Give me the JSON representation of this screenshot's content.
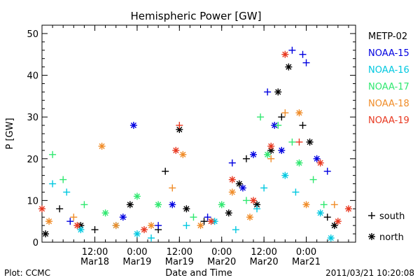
{
  "chart_data": {
    "type": "scatter",
    "title": "Hemispheric Power [GW]",
    "ylabel": "P [GW]",
    "xlabel": "Date and Time",
    "xlim": [
      "2011-03-17T21:00",
      "2011-03-21T14:00"
    ],
    "ylim": [
      0,
      52
    ],
    "yticks": [
      0,
      10,
      20,
      30,
      40,
      50
    ],
    "yminor_step": 2,
    "xticks": [
      {
        "t": "2011-03-18T12:00",
        "time": "12:00",
        "date": "Mar18"
      },
      {
        "t": "2011-03-19T00:00",
        "time": "0:00",
        "date": "Mar19"
      },
      {
        "t": "2011-03-19T12:00",
        "time": "12:00",
        "date": "Mar19"
      },
      {
        "t": "2011-03-20T00:00",
        "time": "0:00",
        "date": "Mar20"
      },
      {
        "t": "2011-03-20T12:00",
        "time": "12:00",
        "date": "Mar20"
      },
      {
        "t": "2011-03-21T00:00",
        "time": "0:00",
        "date": "Mar21"
      }
    ],
    "xminor_hours": 3,
    "grid": false,
    "legend_position": "right",
    "series": [
      {
        "name": "METP-02",
        "color": "#000000",
        "points": [
          {
            "t": "2011-03-17T22:00",
            "v": 2,
            "m": "n"
          },
          {
            "t": "2011-03-18T02:00",
            "v": 8,
            "m": "s"
          },
          {
            "t": "2011-03-18T08:00",
            "v": 4,
            "m": "n"
          },
          {
            "t": "2011-03-18T12:00",
            "v": 3,
            "m": "s"
          },
          {
            "t": "2011-03-18T22:00",
            "v": 9,
            "m": "n"
          },
          {
            "t": "2011-03-19T06:00",
            "v": 3,
            "m": "s"
          },
          {
            "t": "2011-03-19T08:00",
            "v": 17,
            "m": "s"
          },
          {
            "t": "2011-03-19T12:00",
            "v": 27,
            "m": "n"
          },
          {
            "t": "2011-03-19T14:00",
            "v": 8,
            "m": "n"
          },
          {
            "t": "2011-03-19T19:00",
            "v": 5,
            "m": "s"
          },
          {
            "t": "2011-03-20T02:00",
            "v": 7,
            "m": "n"
          },
          {
            "t": "2011-03-20T05:00",
            "v": 14,
            "m": "n"
          },
          {
            "t": "2011-03-20T07:00",
            "v": 20,
            "m": "s"
          },
          {
            "t": "2011-03-20T10:00",
            "v": 9,
            "m": "n"
          },
          {
            "t": "2011-03-20T14:00",
            "v": 22,
            "m": "n"
          },
          {
            "t": "2011-03-20T16:00",
            "v": 36,
            "m": "n"
          },
          {
            "t": "2011-03-20T17:00",
            "v": 30,
            "m": "s"
          },
          {
            "t": "2011-03-20T19:00",
            "v": 42,
            "m": "n"
          },
          {
            "t": "2011-03-20T23:00",
            "v": 28,
            "m": "s"
          },
          {
            "t": "2011-03-21T01:00",
            "v": 24,
            "m": "n"
          },
          {
            "t": "2011-03-21T06:00",
            "v": 6,
            "m": "s"
          },
          {
            "t": "2011-03-21T08:00",
            "v": 4,
            "m": "n"
          }
        ]
      },
      {
        "name": "NOAA-15",
        "color": "#0000e0",
        "points": [
          {
            "t": "2011-03-18T05:00",
            "v": 5,
            "m": "s"
          },
          {
            "t": "2011-03-18T20:00",
            "v": 6,
            "m": "n"
          },
          {
            "t": "2011-03-18T23:00",
            "v": 28,
            "m": "n"
          },
          {
            "t": "2011-03-19T06:00",
            "v": 4,
            "m": "s"
          },
          {
            "t": "2011-03-19T10:00",
            "v": 9,
            "m": "n"
          },
          {
            "t": "2011-03-19T20:00",
            "v": 6,
            "m": "s"
          },
          {
            "t": "2011-03-20T03:00",
            "v": 19,
            "m": "s"
          },
          {
            "t": "2011-03-20T06:00",
            "v": 13,
            "m": "n"
          },
          {
            "t": "2011-03-20T09:00",
            "v": 21,
            "m": "n"
          },
          {
            "t": "2011-03-20T13:00",
            "v": 36,
            "m": "s"
          },
          {
            "t": "2011-03-20T15:00",
            "v": 28,
            "m": "n"
          },
          {
            "t": "2011-03-20T17:00",
            "v": 22,
            "m": "n"
          },
          {
            "t": "2011-03-20T20:00",
            "v": 46,
            "m": "s"
          },
          {
            "t": "2011-03-20T23:00",
            "v": 45,
            "m": "s"
          },
          {
            "t": "2011-03-21T00:00",
            "v": 43,
            "m": "s"
          },
          {
            "t": "2011-03-21T03:00",
            "v": 20,
            "m": "n"
          },
          {
            "t": "2011-03-21T06:00",
            "v": 17,
            "m": "s"
          }
        ]
      },
      {
        "name": "NOAA-16",
        "color": "#00c8e0",
        "points": [
          {
            "t": "2011-03-18T00:00",
            "v": 14,
            "m": "s"
          },
          {
            "t": "2011-03-18T04:00",
            "v": 12,
            "m": "s"
          },
          {
            "t": "2011-03-18T08:00",
            "v": 3,
            "m": "n"
          },
          {
            "t": "2011-03-18T18:00",
            "v": 4,
            "m": "n"
          },
          {
            "t": "2011-03-19T00:00",
            "v": 2,
            "m": "n"
          },
          {
            "t": "2011-03-19T04:00",
            "v": 1,
            "m": "s"
          },
          {
            "t": "2011-03-19T14:00",
            "v": 4,
            "m": "s"
          },
          {
            "t": "2011-03-19T22:00",
            "v": 5,
            "m": "n"
          },
          {
            "t": "2011-03-20T04:00",
            "v": 3,
            "m": "s"
          },
          {
            "t": "2011-03-20T10:00",
            "v": 8,
            "m": "s"
          },
          {
            "t": "2011-03-20T12:00",
            "v": 13,
            "m": "s"
          },
          {
            "t": "2011-03-20T18:00",
            "v": 16,
            "m": "n"
          },
          {
            "t": "2011-03-20T21:00",
            "v": 12,
            "m": "s"
          },
          {
            "t": "2011-03-21T04:00",
            "v": 7,
            "m": "n"
          },
          {
            "t": "2011-03-21T07:00",
            "v": 1,
            "m": "n"
          }
        ]
      },
      {
        "name": "NOAA-17",
        "color": "#30e870",
        "points": [
          {
            "t": "2011-03-18T00:00",
            "v": 21,
            "m": "s"
          },
          {
            "t": "2011-03-18T03:00",
            "v": 15,
            "m": "s"
          },
          {
            "t": "2011-03-18T09:00",
            "v": 9,
            "m": "s"
          },
          {
            "t": "2011-03-18T15:00",
            "v": 7,
            "m": "n"
          },
          {
            "t": "2011-03-19T00:00",
            "v": 11,
            "m": "n"
          },
          {
            "t": "2011-03-19T06:00",
            "v": 9,
            "m": "n"
          },
          {
            "t": "2011-03-19T16:00",
            "v": 6,
            "m": "s"
          },
          {
            "t": "2011-03-20T00:00",
            "v": 9,
            "m": "n"
          },
          {
            "t": "2011-03-20T07:00",
            "v": 10,
            "m": "s"
          },
          {
            "t": "2011-03-20T11:00",
            "v": 30,
            "m": "s"
          },
          {
            "t": "2011-03-20T13:00",
            "v": 21,
            "m": "n"
          },
          {
            "t": "2011-03-20T16:00",
            "v": 28,
            "m": "s"
          },
          {
            "t": "2011-03-20T20:00",
            "v": 24,
            "m": "s"
          },
          {
            "t": "2011-03-20T22:00",
            "v": 19,
            "m": "n"
          },
          {
            "t": "2011-03-21T02:00",
            "v": 15,
            "m": "s"
          },
          {
            "t": "2011-03-21T05:00",
            "v": 9,
            "m": "s"
          }
        ]
      },
      {
        "name": "NOAA-18",
        "color": "#f08c28",
        "points": [
          {
            "t": "2011-03-17T23:00",
            "v": 5,
            "m": "n"
          },
          {
            "t": "2011-03-18T06:00",
            "v": 6,
            "m": "s"
          },
          {
            "t": "2011-03-18T14:00",
            "v": 23,
            "m": "n"
          },
          {
            "t": "2011-03-18T18:00",
            "v": 4,
            "m": "n"
          },
          {
            "t": "2011-03-19T04:00",
            "v": 4,
            "m": "n"
          },
          {
            "t": "2011-03-19T10:00",
            "v": 13,
            "m": "s"
          },
          {
            "t": "2011-03-19T13:00",
            "v": 21,
            "m": "n"
          },
          {
            "t": "2011-03-19T18:00",
            "v": 4,
            "m": "n"
          },
          {
            "t": "2011-03-20T03:00",
            "v": 12,
            "m": "n"
          },
          {
            "t": "2011-03-20T08:00",
            "v": 6,
            "m": "n"
          },
          {
            "t": "2011-03-20T14:00",
            "v": 20,
            "m": "s"
          },
          {
            "t": "2011-03-20T18:00",
            "v": 31,
            "m": "s"
          },
          {
            "t": "2011-03-20T22:00",
            "v": 31,
            "m": "n"
          },
          {
            "t": "2011-03-21T00:00",
            "v": 9,
            "m": "n"
          },
          {
            "t": "2011-03-21T08:00",
            "v": 9,
            "m": "s"
          }
        ]
      },
      {
        "name": "NOAA-19",
        "color": "#e83820",
        "points": [
          {
            "t": "2011-03-17T21:00",
            "v": 8,
            "m": "n"
          },
          {
            "t": "2011-03-18T07:00",
            "v": 4,
            "m": "n"
          },
          {
            "t": "2011-03-19T02:00",
            "v": 3,
            "m": "n"
          },
          {
            "t": "2011-03-19T11:00",
            "v": 22,
            "m": "n"
          },
          {
            "t": "2011-03-19T12:00",
            "v": 28,
            "m": "s"
          },
          {
            "t": "2011-03-19T21:00",
            "v": 5,
            "m": "n"
          },
          {
            "t": "2011-03-20T03:00",
            "v": 15,
            "m": "n"
          },
          {
            "t": "2011-03-20T09:00",
            "v": 10,
            "m": "n"
          },
          {
            "t": "2011-03-20T14:00",
            "v": 23,
            "m": "n"
          },
          {
            "t": "2011-03-20T18:00",
            "v": 45,
            "m": "n"
          },
          {
            "t": "2011-03-20T22:00",
            "v": 24,
            "m": "s"
          },
          {
            "t": "2011-03-21T04:00",
            "v": 19,
            "m": "n"
          },
          {
            "t": "2011-03-21T09:00",
            "v": 5,
            "m": "n"
          },
          {
            "t": "2011-03-21T12:00",
            "v": 8,
            "m": "n"
          }
        ]
      }
    ],
    "marker_legend": [
      {
        "marker": "s",
        "label": "south"
      },
      {
        "marker": "n",
        "label": "north"
      }
    ]
  },
  "footer": {
    "plot_credit": "Plot: CCMC",
    "timestamp": "2011/03/21 10:20:08"
  }
}
